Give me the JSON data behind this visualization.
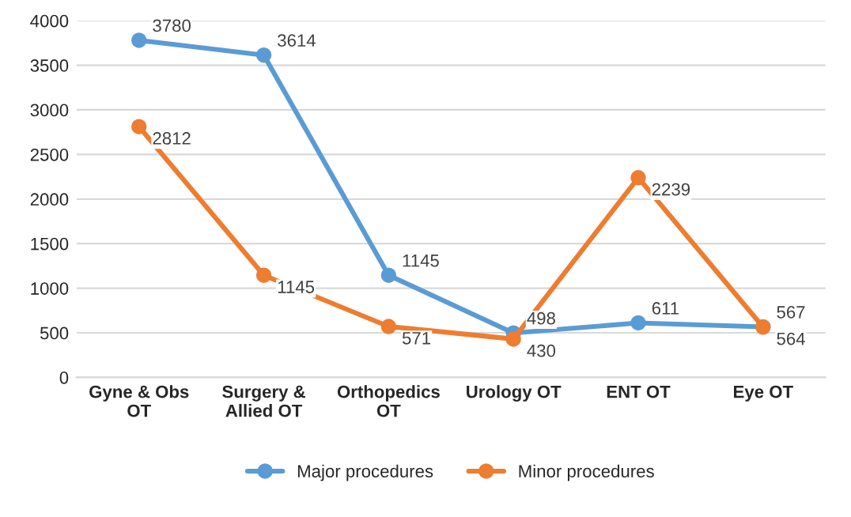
{
  "chart_data": {
    "type": "line",
    "categories": [
      "Gyne & Obs\nOT",
      "Surgery &\nAllied OT",
      "Orthopedics\nOT",
      "Urology OT",
      "ENT OT",
      "Eye OT"
    ],
    "series": [
      {
        "name": "Major procedures",
        "color": "#5b9bd5",
        "values": [
          3780,
          3614,
          1145,
          498,
          611,
          567
        ]
      },
      {
        "name": "Minor procedures",
        "color": "#ed7d31",
        "values": [
          2812,
          1145,
          571,
          430,
          2239,
          564
        ]
      }
    ],
    "ylim": [
      0,
      4000
    ],
    "yticks": [
      0,
      500,
      1000,
      1500,
      2000,
      2500,
      3000,
      3500,
      4000
    ],
    "grid": "y",
    "legend": "bottom",
    "marker": "circle",
    "line_style": "solid",
    "data_labels": true
  }
}
